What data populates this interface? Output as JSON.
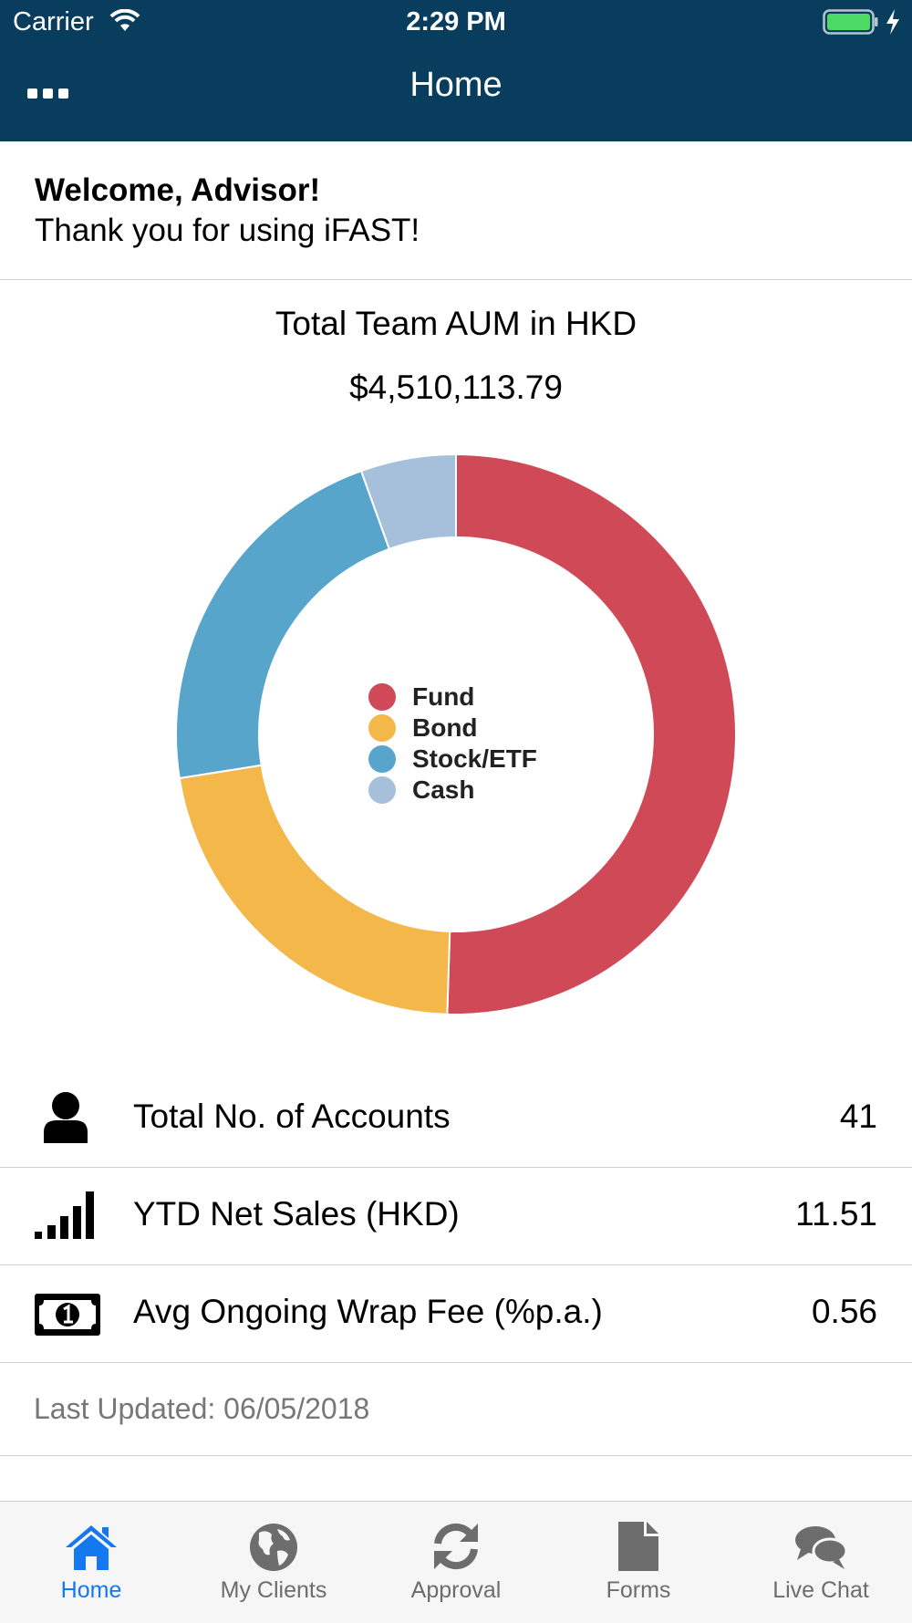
{
  "status_bar": {
    "carrier": "Carrier",
    "time": "2:29 PM"
  },
  "nav": {
    "title": "Home"
  },
  "welcome": {
    "title": "Welcome, Advisor!",
    "subtitle": "Thank you for using iFAST!"
  },
  "aum": {
    "title": "Total Team AUM in HKD",
    "value": "$4,510,113.79"
  },
  "chart_data": {
    "type": "pie",
    "donut": true,
    "categories": [
      "Fund",
      "Bond",
      "Stock/ETF",
      "Cash"
    ],
    "values": [
      50.5,
      22.0,
      22.0,
      5.5
    ],
    "colors": [
      "#d04957",
      "#f3b849",
      "#58a5cc",
      "#a6c0db"
    ],
    "legend_position": "center"
  },
  "stats": [
    {
      "label": "Total No. of Accounts",
      "value": "41",
      "icon": "person-icon"
    },
    {
      "label": "YTD Net Sales (HKD)",
      "value": "11.51",
      "icon": "signal-bars-icon"
    },
    {
      "label": "Avg Ongoing Wrap Fee (%p.a.)",
      "value": "0.56",
      "icon": "banknote-icon"
    }
  ],
  "last_updated": "Last Updated: 06/05/2018",
  "tabs": [
    {
      "label": "Home",
      "icon": "home-icon",
      "active": true
    },
    {
      "label": "My Clients",
      "icon": "globe-icon",
      "active": false
    },
    {
      "label": "Approval",
      "icon": "refresh-icon",
      "active": false
    },
    {
      "label": "Forms",
      "icon": "document-icon",
      "active": false
    },
    {
      "label": "Live Chat",
      "icon": "chat-bubbles-icon",
      "active": false
    }
  ],
  "colors": {
    "nav_background": "#093d5e",
    "tab_active": "#1478f0",
    "tab_inactive": "#6d6d6d"
  }
}
